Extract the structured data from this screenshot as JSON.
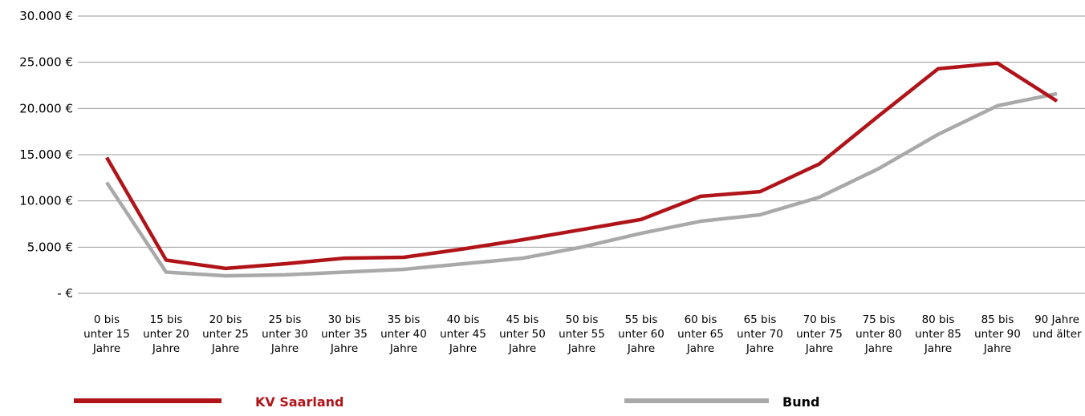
{
  "chart_data": {
    "type": "line",
    "title": "",
    "xlabel": "",
    "ylabel": "",
    "categories": [
      [
        "0 bis",
        "unter 15",
        "Jahre"
      ],
      [
        "15 bis",
        "unter 20",
        "Jahre"
      ],
      [
        "20 bis",
        "unter 25",
        "Jahre"
      ],
      [
        "25 bis",
        "unter 30",
        "Jahre"
      ],
      [
        "30 bis",
        "unter 35",
        "Jahre"
      ],
      [
        "35 bis",
        "unter 40",
        "Jahre"
      ],
      [
        "40 bis",
        "unter 45",
        "Jahre"
      ],
      [
        "45 bis",
        "unter 50",
        "Jahre"
      ],
      [
        "50 bis",
        "unter 55",
        "Jahre"
      ],
      [
        "55 bis",
        "unter 60",
        "Jahre"
      ],
      [
        "60 bis",
        "unter 65",
        "Jahre"
      ],
      [
        "65 bis",
        "unter 70",
        "Jahre"
      ],
      [
        "70 bis",
        "unter 75",
        "Jahre"
      ],
      [
        "75 bis",
        "unter 80",
        "Jahre"
      ],
      [
        "80 bis",
        "unter 85",
        "Jahre"
      ],
      [
        "85 bis",
        "unter 90",
        "Jahre"
      ],
      [
        "90 Jahre",
        "und älter"
      ]
    ],
    "ylim": [
      0,
      30000
    ],
    "yticks": [
      0,
      5000,
      10000,
      15000,
      20000,
      25000,
      30000
    ],
    "ytick_labels": [
      "- €",
      "5.000 €",
      "10.000 €",
      "15.000 €",
      "20.000 €",
      "25.000 €",
      "30.000 €"
    ],
    "grid": "horizontal",
    "legend_position": "bottom",
    "series": [
      {
        "name": "KV Saarland",
        "color": "#b01419",
        "values": [
          14700,
          3600,
          2700,
          3200,
          3800,
          3900,
          4800,
          5800,
          6900,
          8000,
          10500,
          11000,
          14000,
          19200,
          24300,
          24900,
          20800
        ]
      },
      {
        "name": "Bund",
        "color": "#a9a9a9",
        "values": [
          12000,
          2300,
          1900,
          2000,
          2300,
          2600,
          3200,
          3800,
          5000,
          6500,
          7800,
          8500,
          10400,
          13500,
          17200,
          20300,
          21600
        ]
      }
    ]
  }
}
